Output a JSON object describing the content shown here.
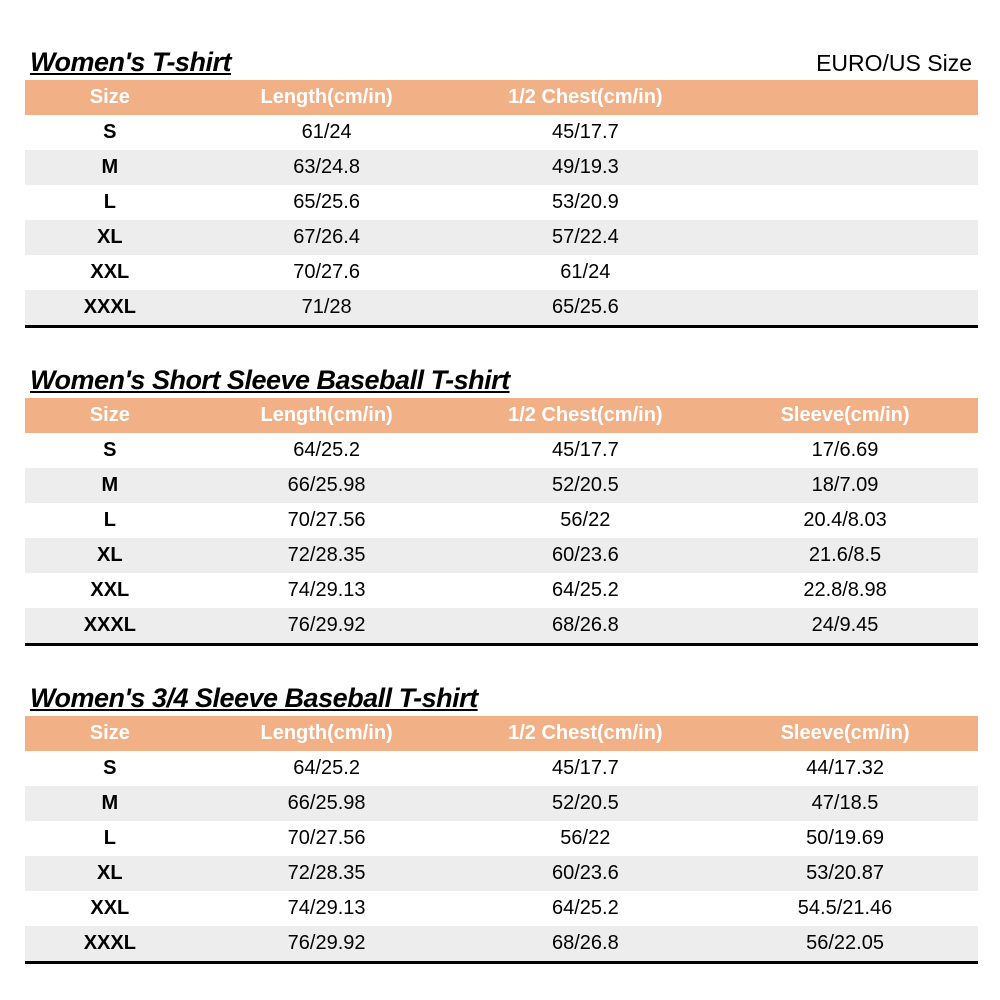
{
  "page": {
    "header_bg_color": "#F2B086",
    "banded_row_color": "#EDEDED",
    "header_text_color": "#FFFFFF"
  },
  "sections": [
    {
      "title": "Women's T-shirt",
      "corner_label": "EURO/US Size",
      "columns": [
        "Size",
        "Length(cm/in)",
        "1/2 Chest(cm/in)"
      ],
      "rows": [
        [
          "S",
          "61/24",
          "45/17.7"
        ],
        [
          "M",
          "63/24.8",
          "49/19.3"
        ],
        [
          "L",
          "65/25.6",
          "53/20.9"
        ],
        [
          "XL",
          "67/26.4",
          "57/22.4"
        ],
        [
          "XXL",
          "70/27.6",
          "61/24"
        ],
        [
          "XXXL",
          "71/28",
          "65/25.6"
        ]
      ]
    },
    {
      "title": "Women's Short Sleeve Baseball T-shirt",
      "columns": [
        "Size",
        "Length(cm/in)",
        "1/2 Chest(cm/in)",
        "Sleeve(cm/in)"
      ],
      "rows": [
        [
          "S",
          "64/25.2",
          "45/17.7",
          "17/6.69"
        ],
        [
          "M",
          "66/25.98",
          "52/20.5",
          "18/7.09"
        ],
        [
          "L",
          "70/27.56",
          "56/22",
          "20.4/8.03"
        ],
        [
          "XL",
          "72/28.35",
          "60/23.6",
          "21.6/8.5"
        ],
        [
          "XXL",
          "74/29.13",
          "64/25.2",
          "22.8/8.98"
        ],
        [
          "XXXL",
          "76/29.92",
          "68/26.8",
          "24/9.45"
        ]
      ]
    },
    {
      "title": "Women's 3/4 Sleeve Baseball T-shirt",
      "columns": [
        "Size",
        "Length(cm/in)",
        "1/2 Chest(cm/in)",
        "Sleeve(cm/in)"
      ],
      "rows": [
        [
          "S",
          "64/25.2",
          "45/17.7",
          "44/17.32"
        ],
        [
          "M",
          "66/25.98",
          "52/20.5",
          "47/18.5"
        ],
        [
          "L",
          "70/27.56",
          "56/22",
          "50/19.69"
        ],
        [
          "XL",
          "72/28.35",
          "60/23.6",
          "53/20.87"
        ],
        [
          "XXL",
          "74/29.13",
          "64/25.2",
          "54.5/21.46"
        ],
        [
          "XXXL",
          "76/29.92",
          "68/26.8",
          "56/22.05"
        ]
      ]
    }
  ]
}
